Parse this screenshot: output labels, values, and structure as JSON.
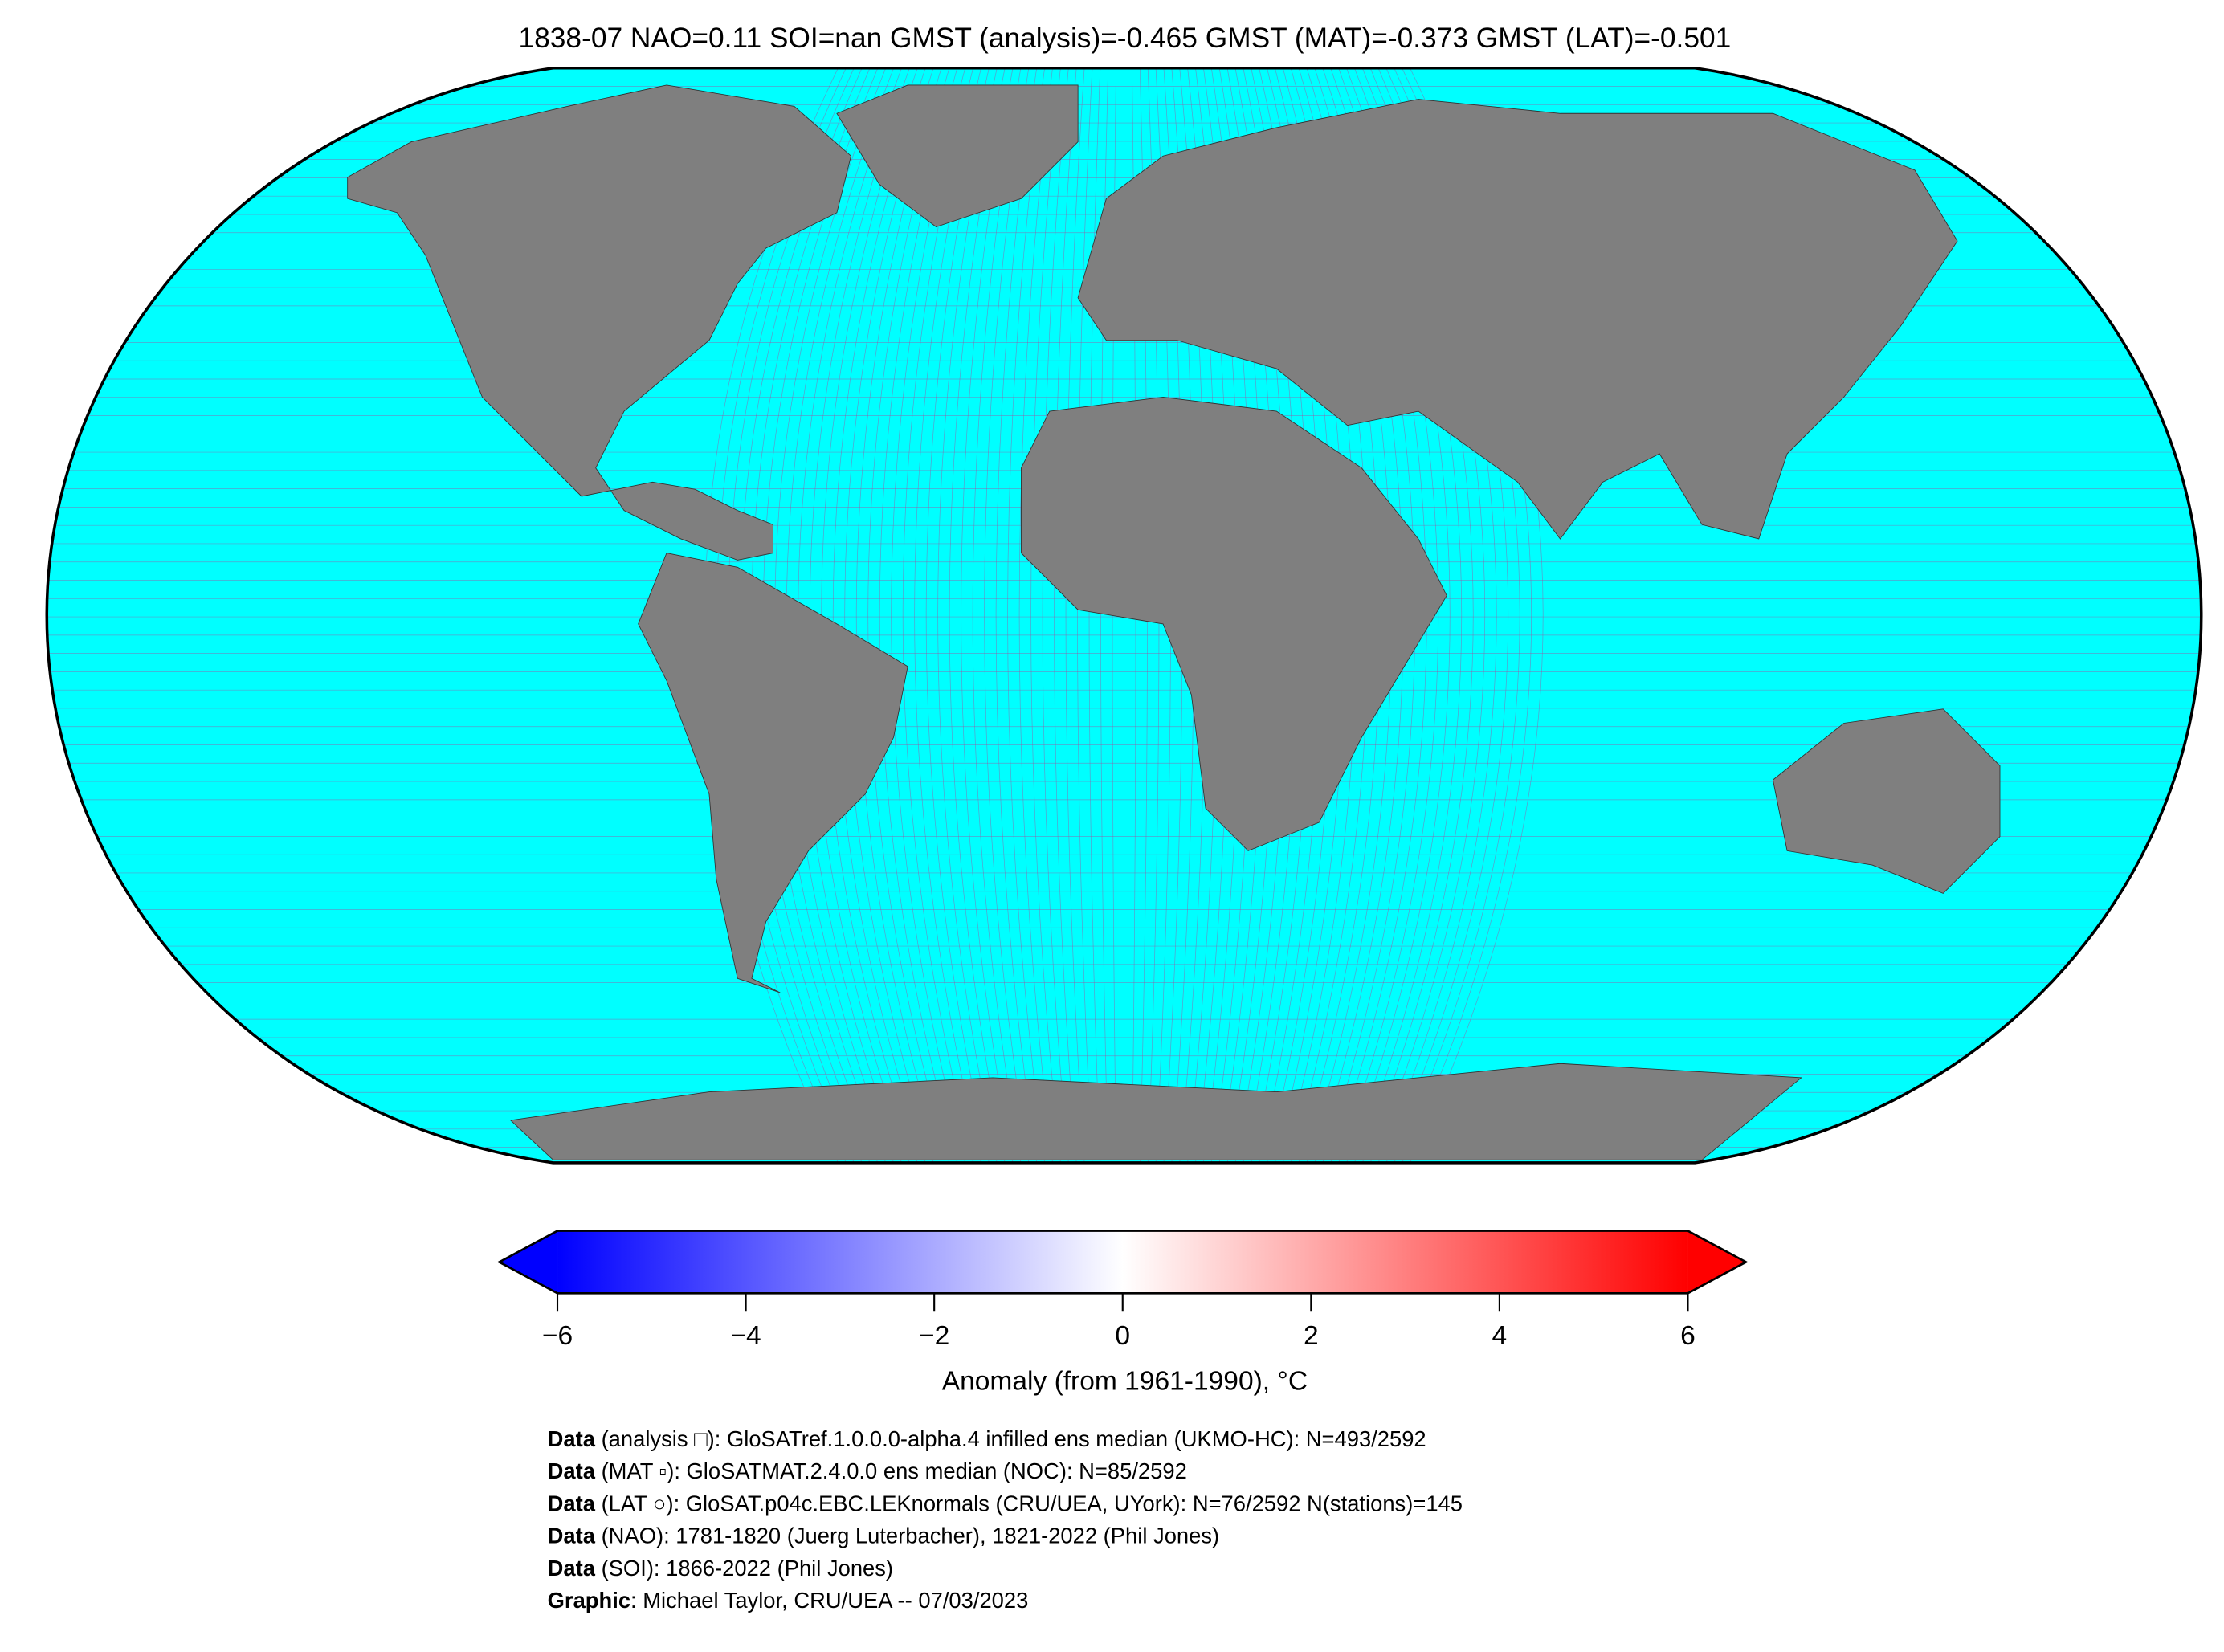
{
  "title": "1838-07 NAO=0.11 SOI=nan GMST (analysis)=-0.465 GMST (MAT)=-0.373 GMST (LAT)=-0.501",
  "colorbar": {
    "type": "colorbar",
    "label": "Anomaly (from 1961-1990), °C",
    "lim": [
      -6,
      6
    ],
    "ticks": [
      {
        "value": -6,
        "label": "−6"
      },
      {
        "value": -4,
        "label": "−4"
      },
      {
        "value": -2,
        "label": "−2"
      },
      0,
      2,
      4,
      6
    ],
    "colors": [
      "#0000ff",
      "#ffffff",
      "#ff0000"
    ],
    "extend": "both"
  },
  "footer": [
    {
      "bold": "Data",
      "text": " (analysis □): GloSATref.1.0.0.0-alpha.4 infilled ens median (UKMO-HC): N=493/2592"
    },
    {
      "bold": "Data",
      "text": " (MAT ▫): GloSATMAT.2.4.0.0 ens median (NOC): N=85/2592"
    },
    {
      "bold": "Data",
      "text": " (LAT ○): GloSAT.p04c.EBC.LEKnormals (CRU/UEA, UYork): N=76/2592 N(stations)=145"
    },
    {
      "bold": "Data",
      "text": " (NAO): 1781-1820 (Juerg Luterbacher), 1821-2022 (Phil Jones)"
    },
    {
      "bold": "Data",
      "text": " (SOI): 1866-2022 (Phil Jones)"
    },
    {
      "bold": "Graphic",
      "text": ": Michael Taylor, CRU/UEA -- 07/03/2023"
    }
  ]
}
